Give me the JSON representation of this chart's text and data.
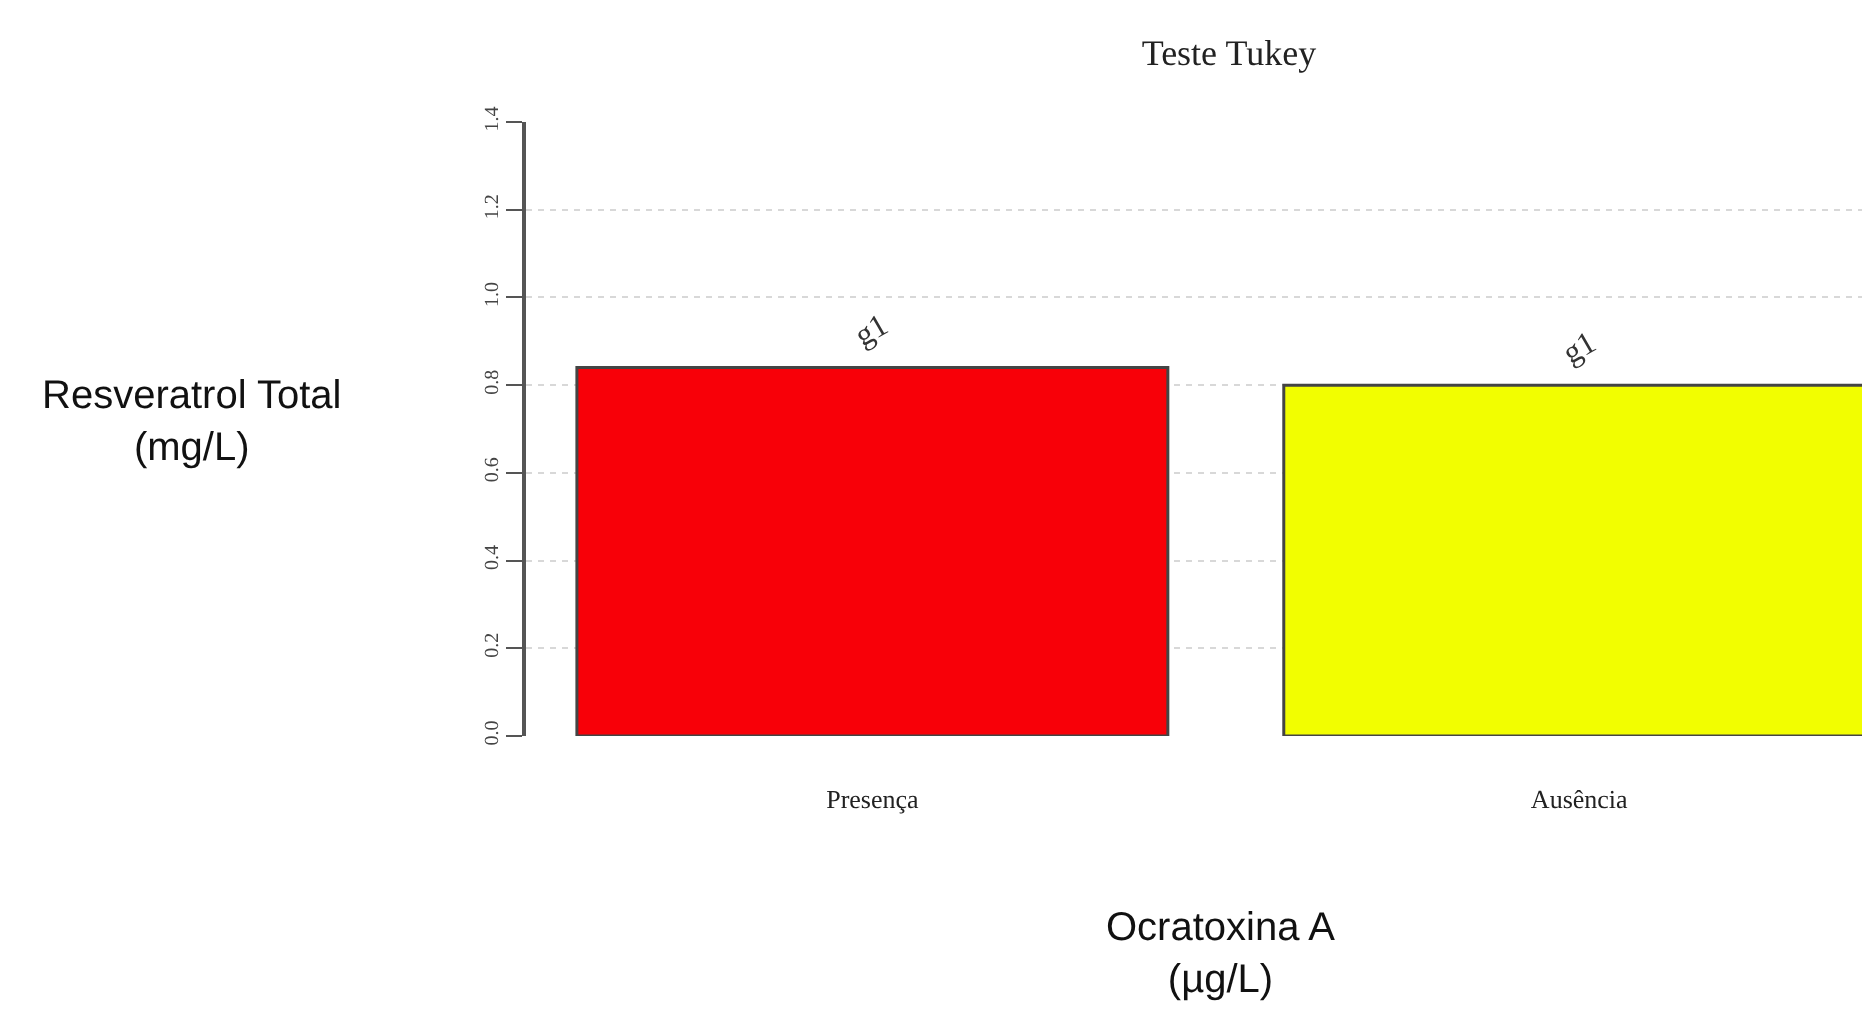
{
  "chart_data": {
    "type": "bar",
    "title": "Teste Tukey",
    "xlabel": "Ocratoxina A\n(µg/L)",
    "ylabel": "Resveratrol Total\n(mg/L)",
    "categories": [
      "Presença",
      "Ausência"
    ],
    "values": [
      0.84,
      0.8
    ],
    "colors": [
      "#f80008",
      "#f2fe00"
    ],
    "ylim": [
      0,
      1.4
    ],
    "yticks": [
      {
        "value": 0,
        "label": "0.0"
      },
      0.2,
      0.4,
      0.6,
      0.8,
      {
        "value": 1.0,
        "label": "1.0"
      },
      1.2,
      1.4
    ],
    "grid": "y",
    "annotations": [
      {
        "text": "g1",
        "x": "Presença",
        "y": 0.84
      },
      {
        "text": "g1",
        "x": "Ausência",
        "y": 0.8
      }
    ]
  }
}
